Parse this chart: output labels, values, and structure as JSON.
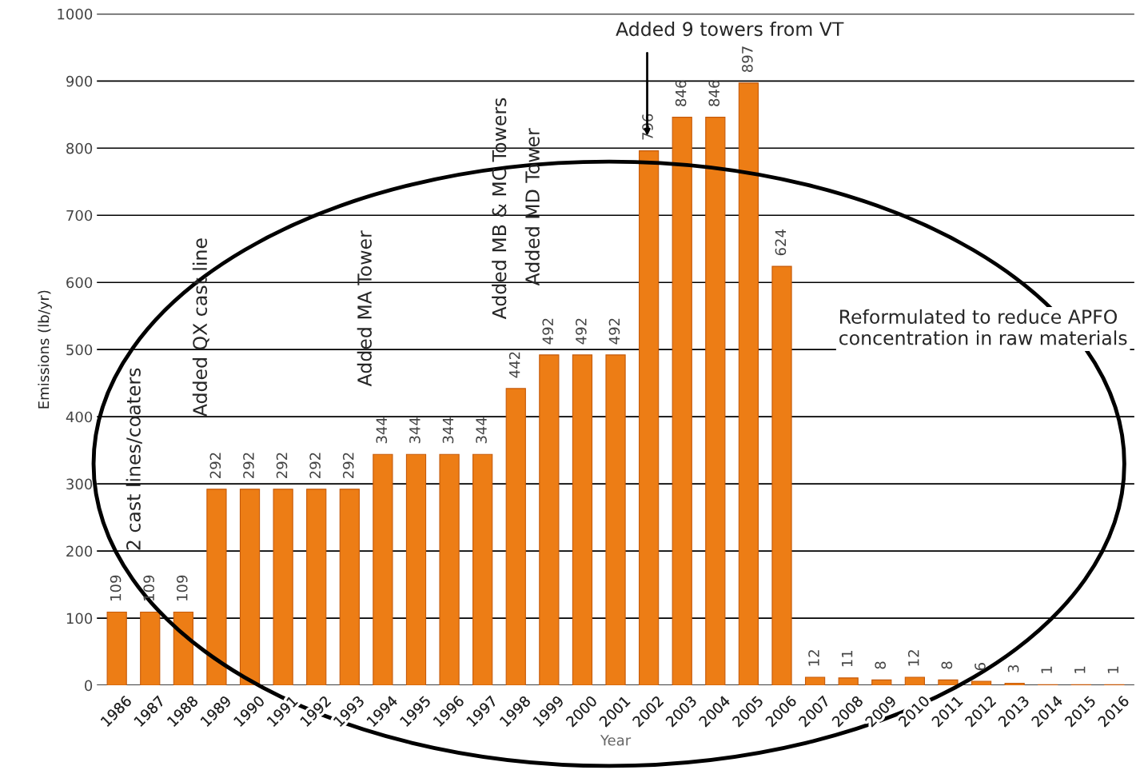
{
  "chart_data": {
    "type": "bar",
    "xlabel": "Year",
    "ylabel": "Emissions (lb/yr)",
    "categories": [
      "1986",
      "1987",
      "1988",
      "1989",
      "1990",
      "1991",
      "1992",
      "1993",
      "1994",
      "1995",
      "1996",
      "1997",
      "1998",
      "1999",
      "2000",
      "2001",
      "2002",
      "2003",
      "2004",
      "2005",
      "2006",
      "2007",
      "2008",
      "2009",
      "2010",
      "2011",
      "2012",
      "2013",
      "2014",
      "2015",
      "2016"
    ],
    "values": [
      109,
      109,
      109,
      292,
      292,
      292,
      292,
      292,
      344,
      344,
      344,
      344,
      442,
      492,
      492,
      492,
      796,
      846,
      846,
      897,
      624,
      12,
      11,
      8,
      12,
      8,
      6,
      3,
      1,
      1,
      1
    ],
    "color": "#ed7d15",
    "ylim": [
      0,
      1000
    ],
    "yticks": [
      0,
      100,
      200,
      300,
      400,
      500,
      600,
      700,
      800,
      900,
      1000
    ],
    "grid": "y",
    "data_labels": true,
    "annotations": [
      "2 cast lines/coaters",
      "Added QX cast line",
      "Added MA Tower",
      "Added MB & MC Towers",
      "Added MD Tower",
      "Added 9 towers from VT",
      "Reformulated to reduce APFO concentration in raw materials"
    ]
  }
}
